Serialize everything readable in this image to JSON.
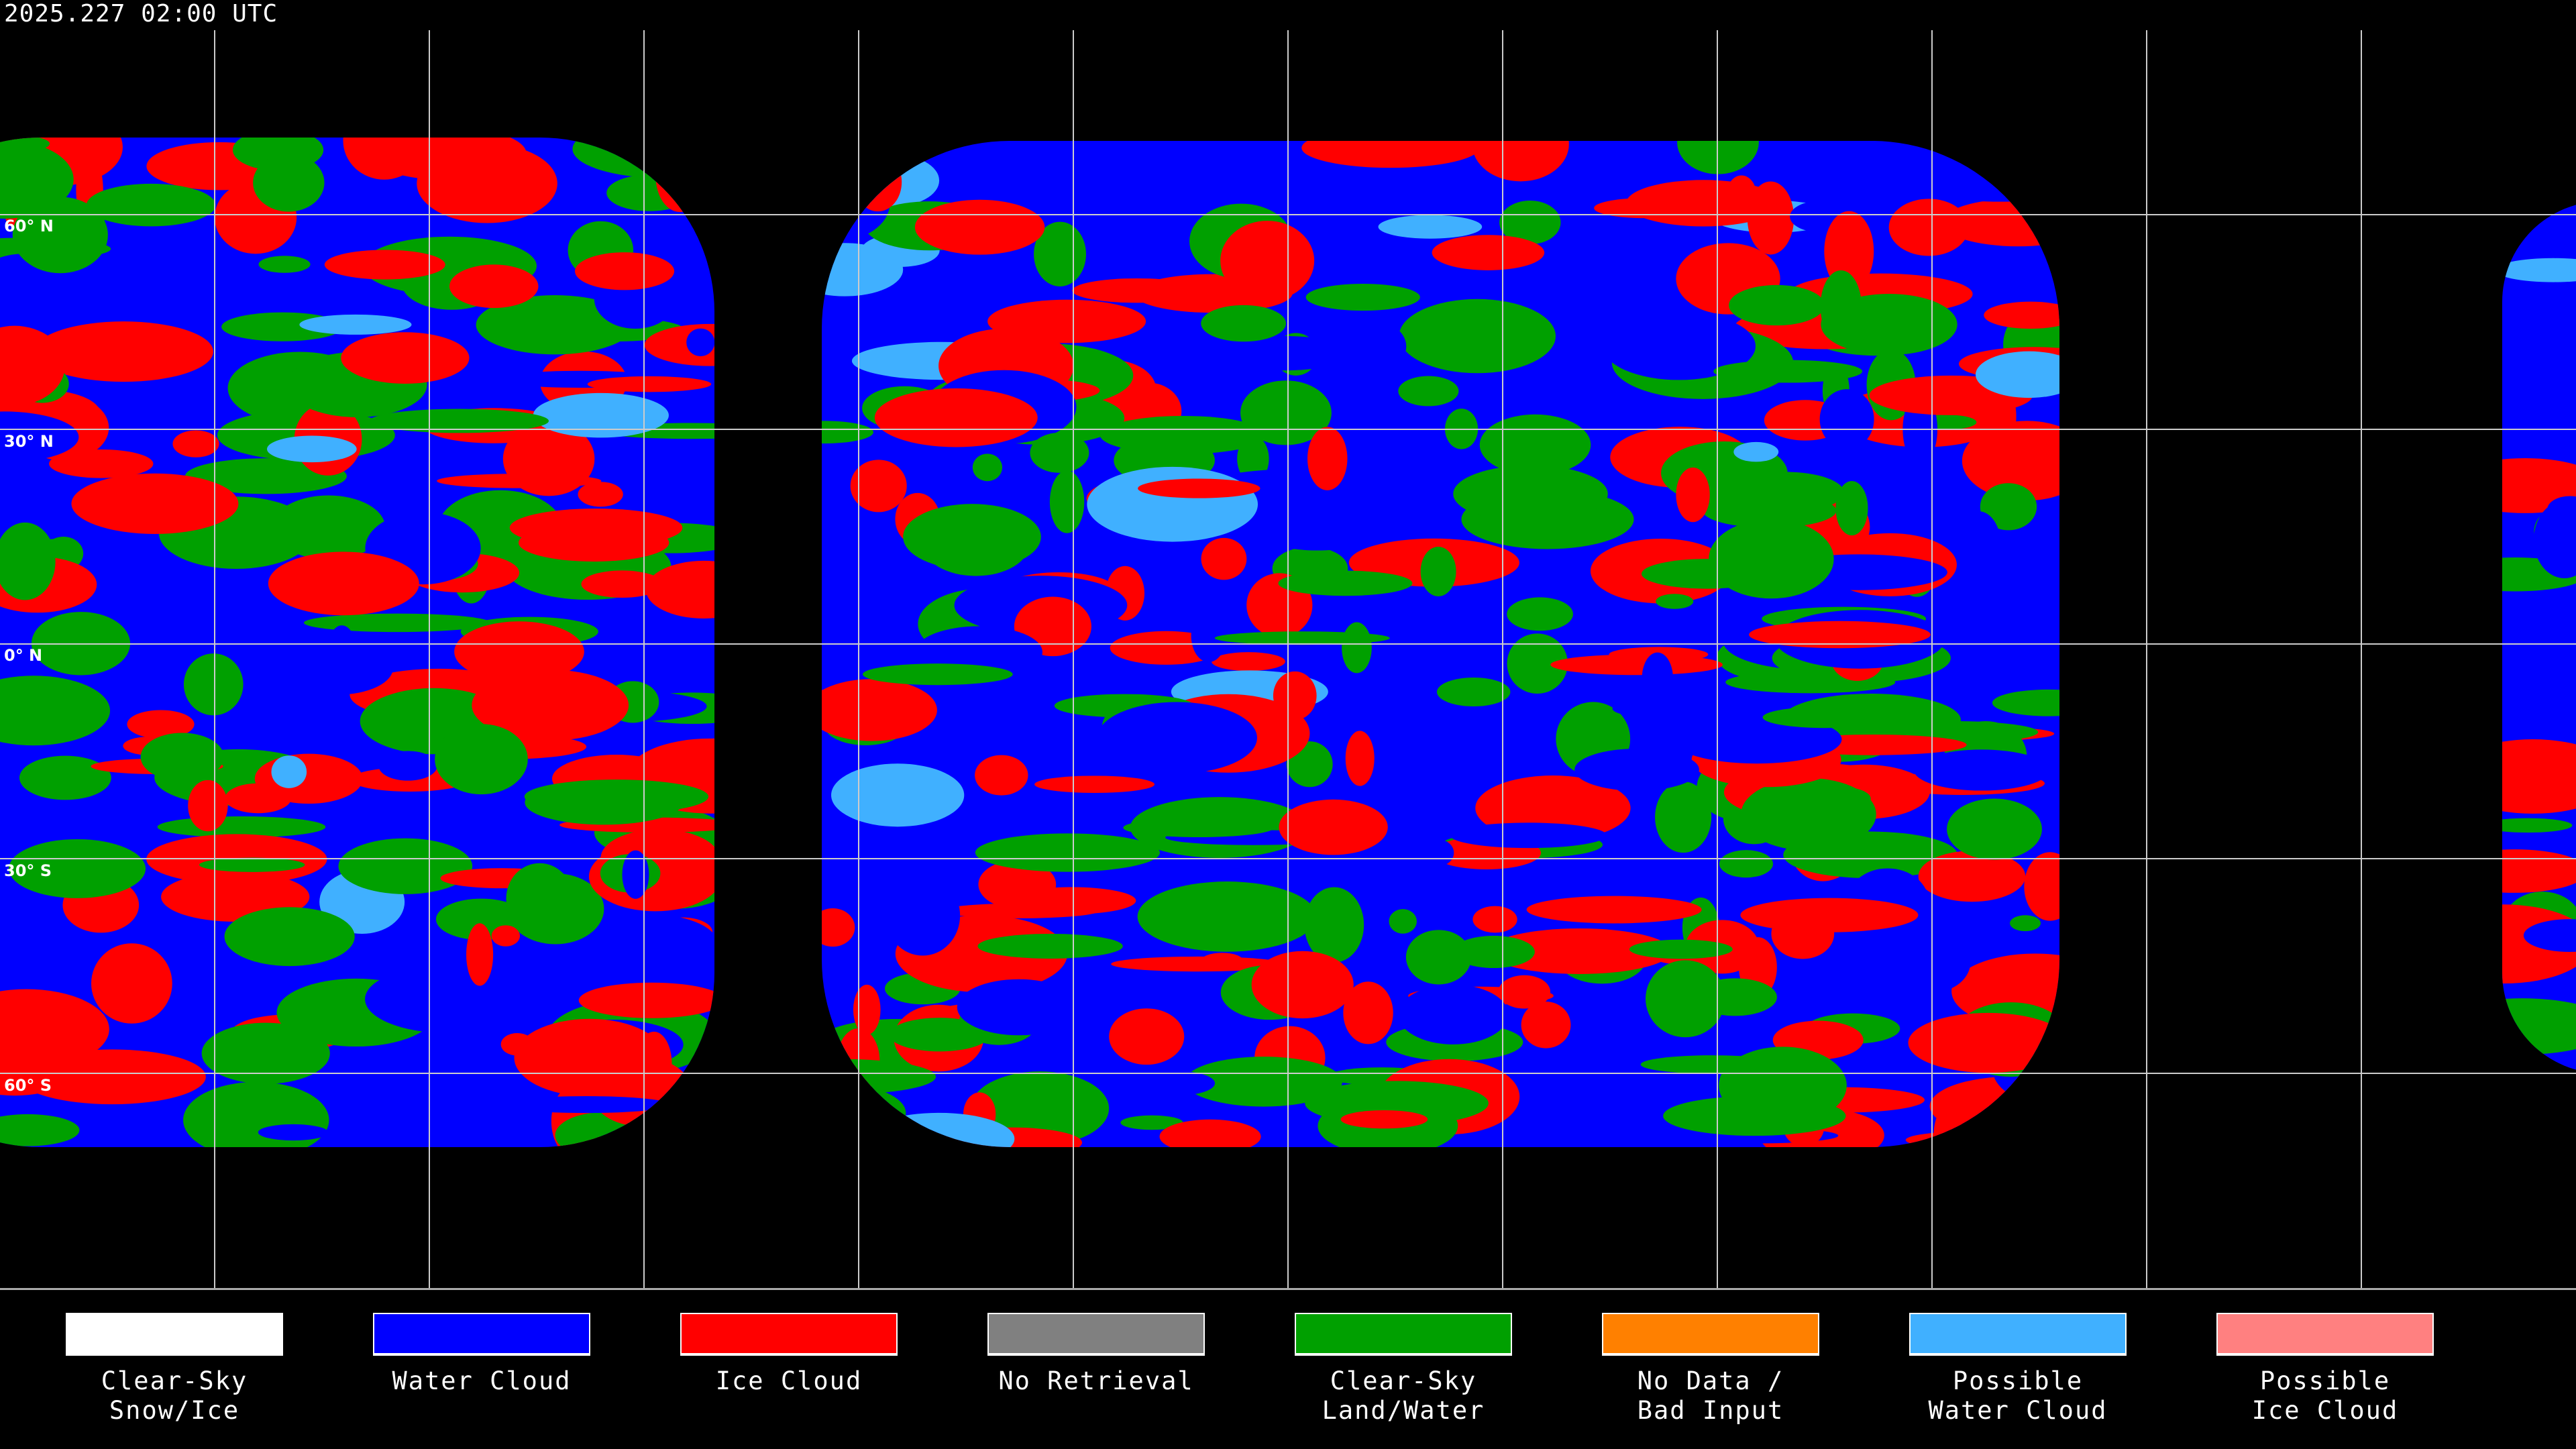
{
  "title": "2025.227 02:00 UTC",
  "latitude_labels": [
    "60° N",
    "30° N",
    "0° N",
    "30° S",
    "60° S"
  ],
  "legend": [
    {
      "label": "Clear-Sky\nSnow/Ice",
      "color": "#ffffff"
    },
    {
      "label": "Water Cloud",
      "color": "#0000ff"
    },
    {
      "label": "Ice Cloud",
      "color": "#ff0000"
    },
    {
      "label": "No Retrieval",
      "color": "#808080"
    },
    {
      "label": "Clear-Sky\nLand/Water",
      "color": "#00a000"
    },
    {
      "label": "No Data /\nBad Input",
      "color": "#ff8000"
    },
    {
      "label": "Possible\nWater Cloud",
      "color": "#40b0ff"
    },
    {
      "label": "Possible\nIce Cloud",
      "color": "#ff8080"
    }
  ]
}
